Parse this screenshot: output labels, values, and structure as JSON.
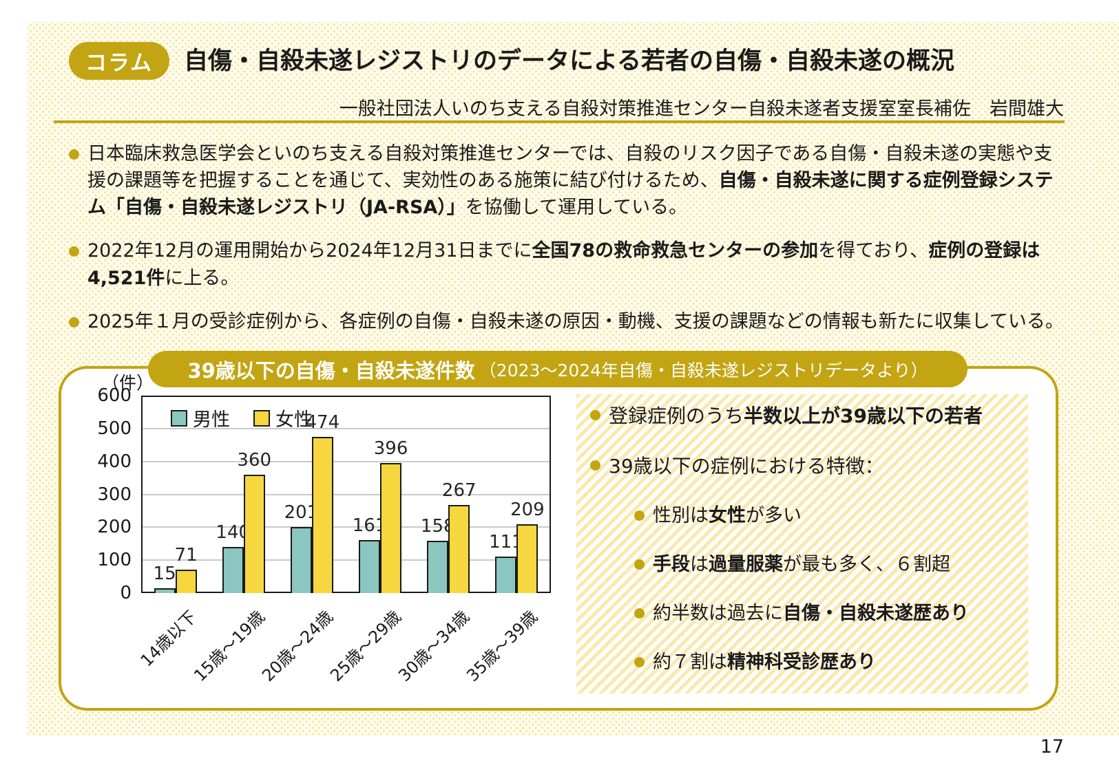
{
  "page": {
    "number": "17"
  },
  "header": {
    "badge": "コラム",
    "title": "自傷・自殺未遂レジストリのデータによる若者の自傷・自殺未遂の概況",
    "subtitle": "一般社団法人いのち支える自殺対策推進センター自殺未遂者支援室室長補佐　岩間雄大"
  },
  "bullets": [
    {
      "segments": [
        {
          "text": "日本臨床救急医学会といのち支える自殺対策推進センターでは、自殺のリスク因子である自傷・自殺未遂の実態や支援の課題等を把握することを通じて、実効性のある施策に結び付けるため、",
          "bold": false
        },
        {
          "text": "自傷・自殺未遂に関する症例登録システム「自傷・自殺未遂レジストリ（JA-RSA）」",
          "bold": true
        },
        {
          "text": "を協働して運用している。",
          "bold": false
        }
      ]
    },
    {
      "segments": [
        {
          "text": "2022年12月の運用開始から2024年12月31日までに",
          "bold": false
        },
        {
          "text": "全国78の救命救急センターの参加",
          "bold": true
        },
        {
          "text": "を得ており、",
          "bold": false
        },
        {
          "text": "症例の登録は4,521件",
          "bold": true
        },
        {
          "text": "に上る。",
          "bold": false
        }
      ]
    },
    {
      "segments": [
        {
          "text": "2025年１月の受診症例から、各症例の自傷・自殺未遂の原因・動機、支援の課題などの情報も新たに収集している。",
          "bold": false
        }
      ]
    }
  ],
  "chart_title": {
    "main": "39歳以下の自傷・自殺未遂件数",
    "sub": "（2023～2024年自傷・自殺未遂レジストリデータより）"
  },
  "chart_data": {
    "type": "bar",
    "title": "39歳以下の自傷・自殺未遂件数（2023～2024年自傷・自殺未遂レジストリデータより）",
    "unit_label": "（件）",
    "categories": [
      "14歳以下",
      "15歳～19歳",
      "20歳～24歳",
      "25歳～29歳",
      "30歳～34歳",
      "35歳～39歳"
    ],
    "series": [
      {
        "name": "男性",
        "color": "#8BC6C0",
        "values": [
          15,
          140,
          201,
          161,
          158,
          111
        ]
      },
      {
        "name": "女性",
        "color": "#F6D73F",
        "values": [
          71,
          360,
          474,
          396,
          267,
          209
        ]
      }
    ],
    "ylim": [
      0,
      600
    ],
    "ytick_step": 100,
    "grid": true,
    "legend_position": "top-left"
  },
  "panel": {
    "items": [
      {
        "level": 1,
        "segments": [
          {
            "text": "登録症例のうち",
            "bold": false
          },
          {
            "text": "半数以上が39歳以下の若者",
            "bold": true
          }
        ]
      },
      {
        "level": 1,
        "segments": [
          {
            "text": "39歳以下の症例における特徴：",
            "bold": false
          }
        ]
      },
      {
        "level": 2,
        "segments": [
          {
            "text": "性別は",
            "bold": false
          },
          {
            "text": "女性",
            "bold": true
          },
          {
            "text": "が多い",
            "bold": false
          }
        ]
      },
      {
        "level": 2,
        "segments": [
          {
            "text": "手段",
            "bold": true
          },
          {
            "text": "は",
            "bold": false
          },
          {
            "text": "過量服薬",
            "bold": true
          },
          {
            "text": "が最も多く、６割超",
            "bold": false
          }
        ]
      },
      {
        "level": 2,
        "segments": [
          {
            "text": "約半数は過去に",
            "bold": false
          },
          {
            "text": "自傷・自殺未遂歴あり",
            "bold": true
          }
        ]
      },
      {
        "level": 2,
        "segments": [
          {
            "text": "約７割は",
            "bold": false
          },
          {
            "text": "精神科受診歴あり",
            "bold": true
          }
        ]
      }
    ]
  },
  "colors": {
    "accent": "#C3A412",
    "pattern_bg": "#FFFCEC",
    "pattern_dot": "#F2E196",
    "stripe": "#FAE9AC",
    "grid": "#C9C9C9",
    "text": "#1A1A1A",
    "male_bar": "#8BC6C0",
    "female_bar": "#F6D73F"
  }
}
